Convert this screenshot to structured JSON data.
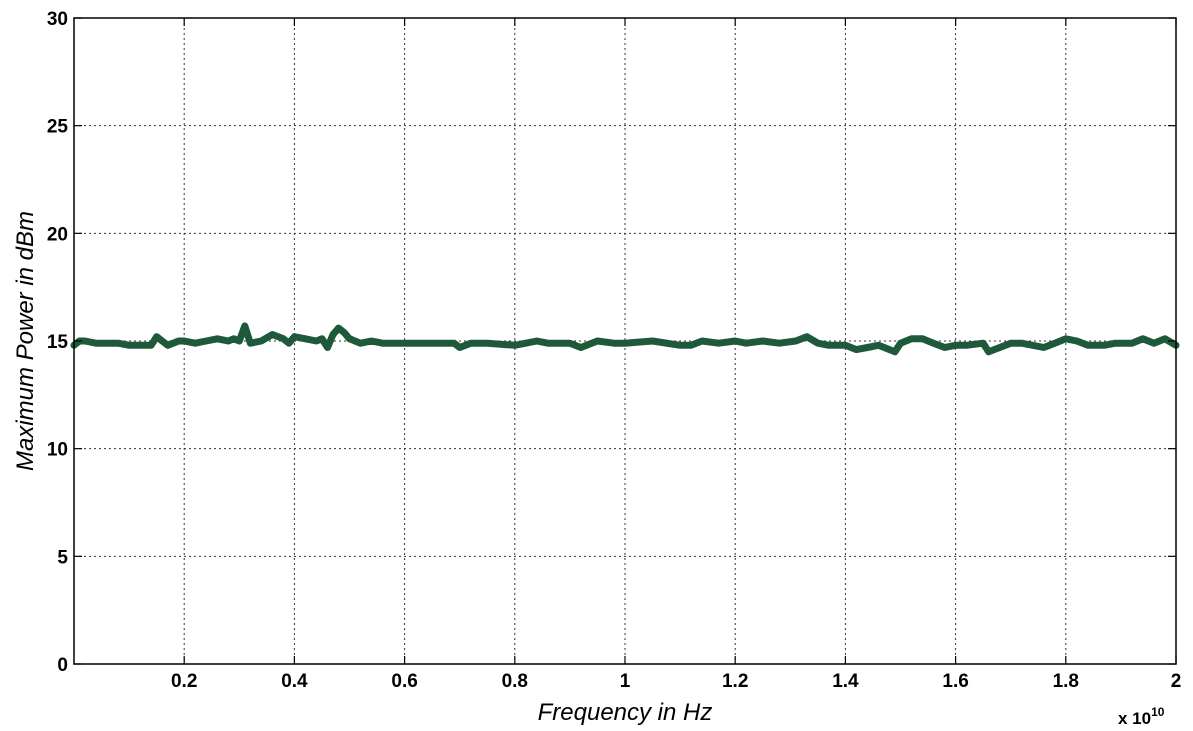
{
  "chart_data": {
    "type": "line",
    "xlabel": "Frequency in Hz",
    "ylabel": "Maximum Power in dBm",
    "x_multiplier_label": "x 10",
    "x_multiplier_exponent": "10",
    "xlim": [
      0,
      2
    ],
    "ylim": [
      0,
      30
    ],
    "x_ticks": [
      0.2,
      0.4,
      0.6,
      0.8,
      1,
      1.2,
      1.4,
      1.6,
      1.8,
      2
    ],
    "x_tick_labels": [
      "0.2",
      "0.4",
      "0.6",
      "0.8",
      "1",
      "1.2",
      "1.4",
      "1.6",
      "1.8",
      "2"
    ],
    "y_ticks": [
      0,
      5,
      10,
      15,
      20,
      25,
      30
    ],
    "y_tick_labels": [
      "0",
      "5",
      "10",
      "15",
      "20",
      "25",
      "30"
    ],
    "grid": true,
    "line_color": "#1e5a3a",
    "series": [
      {
        "x": [
          0.0,
          0.01,
          0.02,
          0.04,
          0.06,
          0.08,
          0.1,
          0.12,
          0.14,
          0.15,
          0.16,
          0.17,
          0.18,
          0.19,
          0.2,
          0.22,
          0.24,
          0.26,
          0.28,
          0.29,
          0.3,
          0.31,
          0.32,
          0.34,
          0.36,
          0.38,
          0.39,
          0.4,
          0.42,
          0.44,
          0.45,
          0.46,
          0.47,
          0.48,
          0.49,
          0.5,
          0.52,
          0.54,
          0.56,
          0.6,
          0.65,
          0.69,
          0.7,
          0.72,
          0.75,
          0.8,
          0.82,
          0.84,
          0.86,
          0.9,
          0.92,
          0.95,
          0.98,
          1.0,
          1.05,
          1.1,
          1.12,
          1.14,
          1.17,
          1.2,
          1.22,
          1.25,
          1.28,
          1.31,
          1.33,
          1.35,
          1.37,
          1.4,
          1.42,
          1.44,
          1.46,
          1.48,
          1.49,
          1.5,
          1.52,
          1.54,
          1.56,
          1.58,
          1.6,
          1.62,
          1.65,
          1.66,
          1.68,
          1.7,
          1.72,
          1.74,
          1.76,
          1.78,
          1.8,
          1.82,
          1.84,
          1.87,
          1.89,
          1.92,
          1.94,
          1.96,
          1.98,
          2.0
        ],
        "y": [
          14.8,
          15.0,
          15.0,
          14.9,
          14.9,
          14.9,
          14.8,
          14.8,
          14.8,
          15.2,
          15.0,
          14.8,
          14.9,
          15.0,
          15.0,
          14.9,
          15.0,
          15.1,
          15.0,
          15.1,
          15.0,
          15.7,
          14.9,
          15.0,
          15.3,
          15.1,
          14.9,
          15.2,
          15.1,
          15.0,
          15.1,
          14.7,
          15.3,
          15.6,
          15.4,
          15.1,
          14.9,
          15.0,
          14.9,
          14.9,
          14.9,
          14.9,
          14.7,
          14.9,
          14.9,
          14.8,
          14.9,
          15.0,
          14.9,
          14.9,
          14.7,
          15.0,
          14.9,
          14.9,
          15.0,
          14.8,
          14.8,
          15.0,
          14.9,
          15.0,
          14.9,
          15.0,
          14.9,
          15.0,
          15.2,
          14.9,
          14.8,
          14.8,
          14.6,
          14.7,
          14.8,
          14.6,
          14.5,
          14.9,
          15.1,
          15.1,
          14.9,
          14.7,
          14.8,
          14.8,
          14.9,
          14.5,
          14.7,
          14.9,
          14.9,
          14.8,
          14.7,
          14.9,
          15.1,
          15.0,
          14.8,
          14.8,
          14.9,
          14.9,
          15.1,
          14.9,
          15.1,
          14.8
        ]
      }
    ]
  }
}
